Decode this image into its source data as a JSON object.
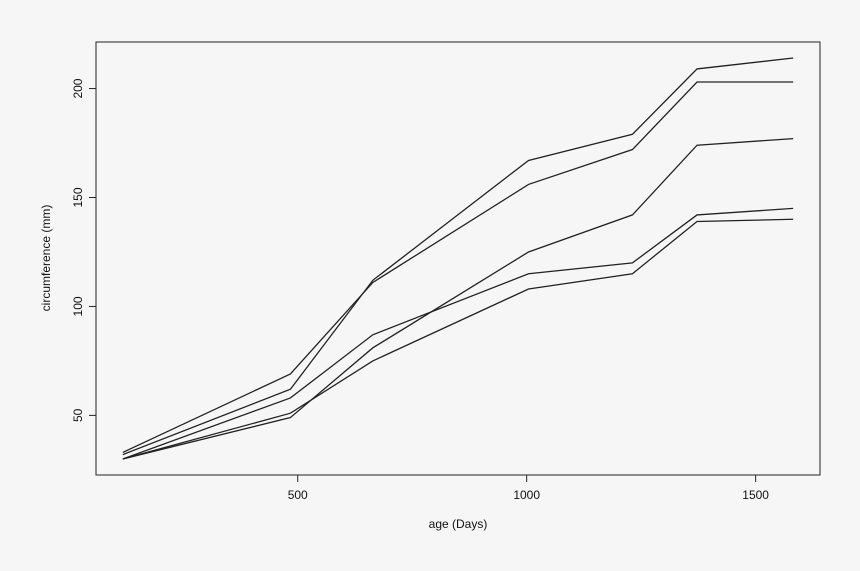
{
  "chart_data": {
    "type": "line",
    "xlabel": "age (Days)",
    "ylabel": "circumference (mm)",
    "x": [
      118,
      484,
      664,
      1004,
      1231,
      1372,
      1582
    ],
    "series": [
      {
        "color": "#222222",
        "values": [
          30,
          58,
          87,
          115,
          120,
          142,
          145
        ]
      },
      {
        "color": "#222222",
        "values": [
          33,
          69,
          111,
          156,
          172,
          203,
          203
        ]
      },
      {
        "color": "#222222",
        "values": [
          30,
          51,
          75,
          108,
          115,
          139,
          140
        ]
      },
      {
        "color": "#222222",
        "values": [
          32,
          62,
          112,
          167,
          179,
          209,
          214
        ]
      },
      {
        "color": "#222222",
        "values": [
          30,
          49,
          81,
          125,
          142,
          174,
          177
        ]
      }
    ],
    "xlim": [
      59.44,
      1640.56
    ],
    "xticks": [
      500,
      1000,
      1500
    ],
    "ylim": [
      22.64,
      221.36
    ],
    "yticks": [
      50,
      100,
      150,
      200
    ],
    "grid": false
  }
}
